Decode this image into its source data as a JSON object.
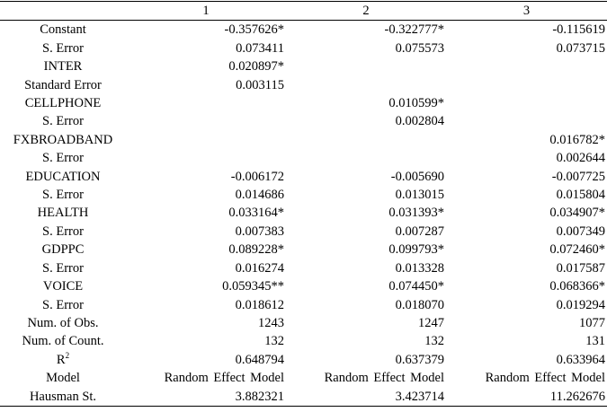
{
  "table": {
    "header": [
      "1",
      "2",
      "3"
    ],
    "rows": [
      {
        "label": "Constant",
        "cells": [
          "-0.357626*",
          "-0.322777*",
          "-0.115619"
        ]
      },
      {
        "label": "S. Error",
        "cells": [
          "0.073411",
          "0.075573",
          "0.073715"
        ]
      },
      {
        "label": "INTER",
        "cells": [
          "0.020897*",
          null,
          null
        ]
      },
      {
        "label": "Standard Error",
        "cells": [
          "0.003115",
          null,
          null
        ]
      },
      {
        "label": "CELLPHONE",
        "cells": [
          null,
          "0.010599*",
          null
        ]
      },
      {
        "label": "S. Error",
        "cells": [
          null,
          "0.002804",
          null
        ]
      },
      {
        "label": "FXBROADBAND",
        "cells": [
          null,
          null,
          "0.016782*"
        ]
      },
      {
        "label": "S. Error",
        "cells": [
          null,
          null,
          "0.002644"
        ]
      },
      {
        "label": "EDUCATION",
        "cells": [
          "-0.006172",
          "-0.005690",
          "-0.007725"
        ]
      },
      {
        "label": "S. Error",
        "cells": [
          "0.014686",
          "0.013015",
          "0.015804"
        ]
      },
      {
        "label": "HEALTH",
        "cells": [
          "0.033164*",
          "0.031393*",
          "0.034907*"
        ]
      },
      {
        "label": "S. Error",
        "cells": [
          "0.007383",
          "0.007287",
          "0.007349"
        ]
      },
      {
        "label": "GDPPC",
        "cells": [
          "0.089228*",
          "0.099793*",
          "0.072460*"
        ]
      },
      {
        "label": "S. Error",
        "cells": [
          "0.016274",
          "0.013328",
          "0.017587"
        ]
      },
      {
        "label": "VOICE",
        "cells": [
          "0.059345**",
          "0.074450*",
          "0.068366*"
        ]
      },
      {
        "label": "S. Error",
        "cells": [
          "0.018612",
          "0.018070",
          "0.019294"
        ]
      },
      {
        "label": "Num. of Obs.",
        "cells": [
          "1243",
          "1247",
          "1077"
        ]
      },
      {
        "label": "Num. of Count.",
        "cells": [
          "132",
          "132",
          "131"
        ]
      },
      {
        "label": "R",
        "label_sup": "2",
        "cells": [
          "0.648794",
          "0.637379",
          "0.633964"
        ]
      },
      {
        "label": "Model",
        "cells": [
          "Random Effect Model",
          "Random Effect Model",
          "Random Effect Model"
        ]
      },
      {
        "label": "Hausman St.",
        "cells": [
          "3.882321",
          "3.423714",
          "11.262676"
        ]
      }
    ]
  }
}
